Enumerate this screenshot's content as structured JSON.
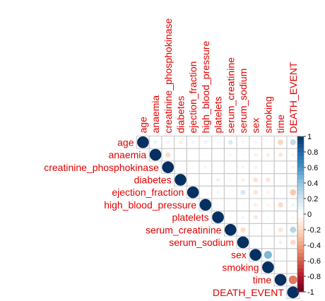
{
  "chart_data": {
    "type": "heatmap",
    "subtype": "correlation-upper",
    "title": "",
    "variables": [
      "age",
      "anaemia",
      "creatinine_phosphokinase",
      "diabetes",
      "ejection_fraction",
      "high_blood_pressure",
      "platelets",
      "serum_creatinine",
      "serum_sodium",
      "sex",
      "smoking",
      "time",
      "DEATH_EVENT"
    ],
    "matrix": [
      [
        1.0,
        0.09,
        -0.08,
        -0.1,
        0.06,
        0.09,
        -0.05,
        0.16,
        -0.05,
        0.07,
        0.02,
        -0.22,
        0.25
      ],
      [
        0.09,
        1.0,
        -0.19,
        -0.01,
        0.03,
        0.04,
        -0.04,
        0.05,
        0.04,
        -0.09,
        -0.11,
        -0.14,
        0.07
      ],
      [
        -0.08,
        -0.19,
        1.0,
        -0.01,
        -0.04,
        -0.07,
        0.02,
        -0.02,
        0.06,
        0.08,
        0.0,
        -0.01,
        0.06
      ],
      [
        -0.1,
        -0.01,
        -0.01,
        1.0,
        -0.0,
        -0.01,
        0.09,
        -0.05,
        -0.09,
        -0.16,
        -0.15,
        0.03,
        -0.0
      ],
      [
        0.06,
        0.03,
        -0.04,
        -0.0,
        1.0,
        0.02,
        0.07,
        -0.01,
        0.18,
        -0.15,
        -0.07,
        0.04,
        -0.27
      ],
      [
        0.09,
        0.04,
        -0.07,
        -0.01,
        0.02,
        1.0,
        0.05,
        -0.0,
        0.04,
        -0.1,
        -0.06,
        -0.2,
        0.08
      ],
      [
        -0.05,
        -0.04,
        0.02,
        0.09,
        0.07,
        0.05,
        1.0,
        -0.04,
        0.06,
        -0.13,
        0.03,
        0.01,
        -0.05
      ],
      [
        0.16,
        0.05,
        -0.02,
        -0.05,
        -0.01,
        -0.0,
        -0.04,
        1.0,
        -0.19,
        0.01,
        -0.03,
        -0.15,
        0.29
      ],
      [
        -0.05,
        0.04,
        0.06,
        -0.09,
        0.18,
        0.04,
        0.06,
        -0.19,
        1.0,
        -0.03,
        0.0,
        0.09,
        -0.2
      ],
      [
        0.07,
        -0.09,
        0.08,
        -0.16,
        -0.15,
        -0.1,
        -0.13,
        0.01,
        -0.03,
        1.0,
        0.45,
        -0.02,
        -0.0
      ],
      [
        0.02,
        -0.11,
        0.0,
        -0.15,
        -0.07,
        -0.06,
        0.03,
        -0.03,
        0.0,
        0.45,
        1.0,
        -0.02,
        -0.01
      ],
      [
        -0.22,
        -0.14,
        -0.01,
        0.03,
        0.04,
        -0.2,
        0.01,
        -0.15,
        0.09,
        -0.02,
        -0.02,
        1.0,
        -0.53
      ],
      [
        0.25,
        0.07,
        0.06,
        -0.0,
        -0.27,
        0.08,
        -0.05,
        0.29,
        -0.2,
        -0.0,
        -0.01,
        -0.53,
        1.0
      ]
    ],
    "color_scale": {
      "min": -1,
      "max": 1,
      "ticks": [
        "1",
        "0.8",
        "0.6",
        "0.4",
        "0.2",
        "0",
        "-0.2",
        "-0.4",
        "-0.6",
        "-0.8",
        "-1"
      ],
      "stops": [
        "#67001f",
        "#b2182b",
        "#d6604d",
        "#f4a582",
        "#fddbc7",
        "#ffffff",
        "#d1e5f0",
        "#92c5de",
        "#4393c3",
        "#2166ac",
        "#053061"
      ]
    },
    "label_color": "#e00000",
    "grid": true,
    "legend_placement": "right"
  }
}
